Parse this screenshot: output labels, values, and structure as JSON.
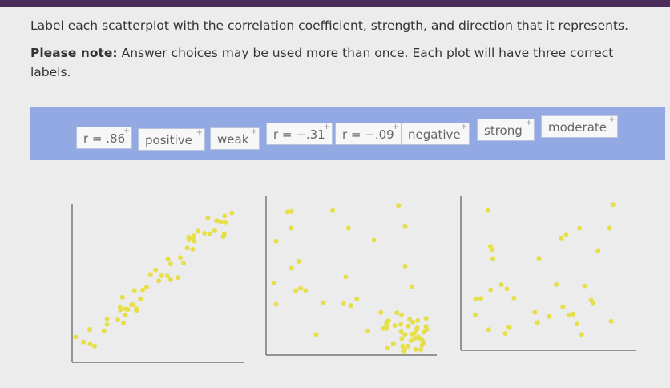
{
  "instructions": {
    "text": "Label each scatterplot with the correlation coefficient, strength, and direction that it represents.",
    "note_label": "Please note:",
    "note_text": "Answer choices may be used more than once. Each plot will have three correct labels."
  },
  "choices": [
    "r = .86",
    "positive",
    "weak",
    "r = −.31",
    "r = −.09",
    "negative",
    "strong",
    "moderate"
  ]
}
